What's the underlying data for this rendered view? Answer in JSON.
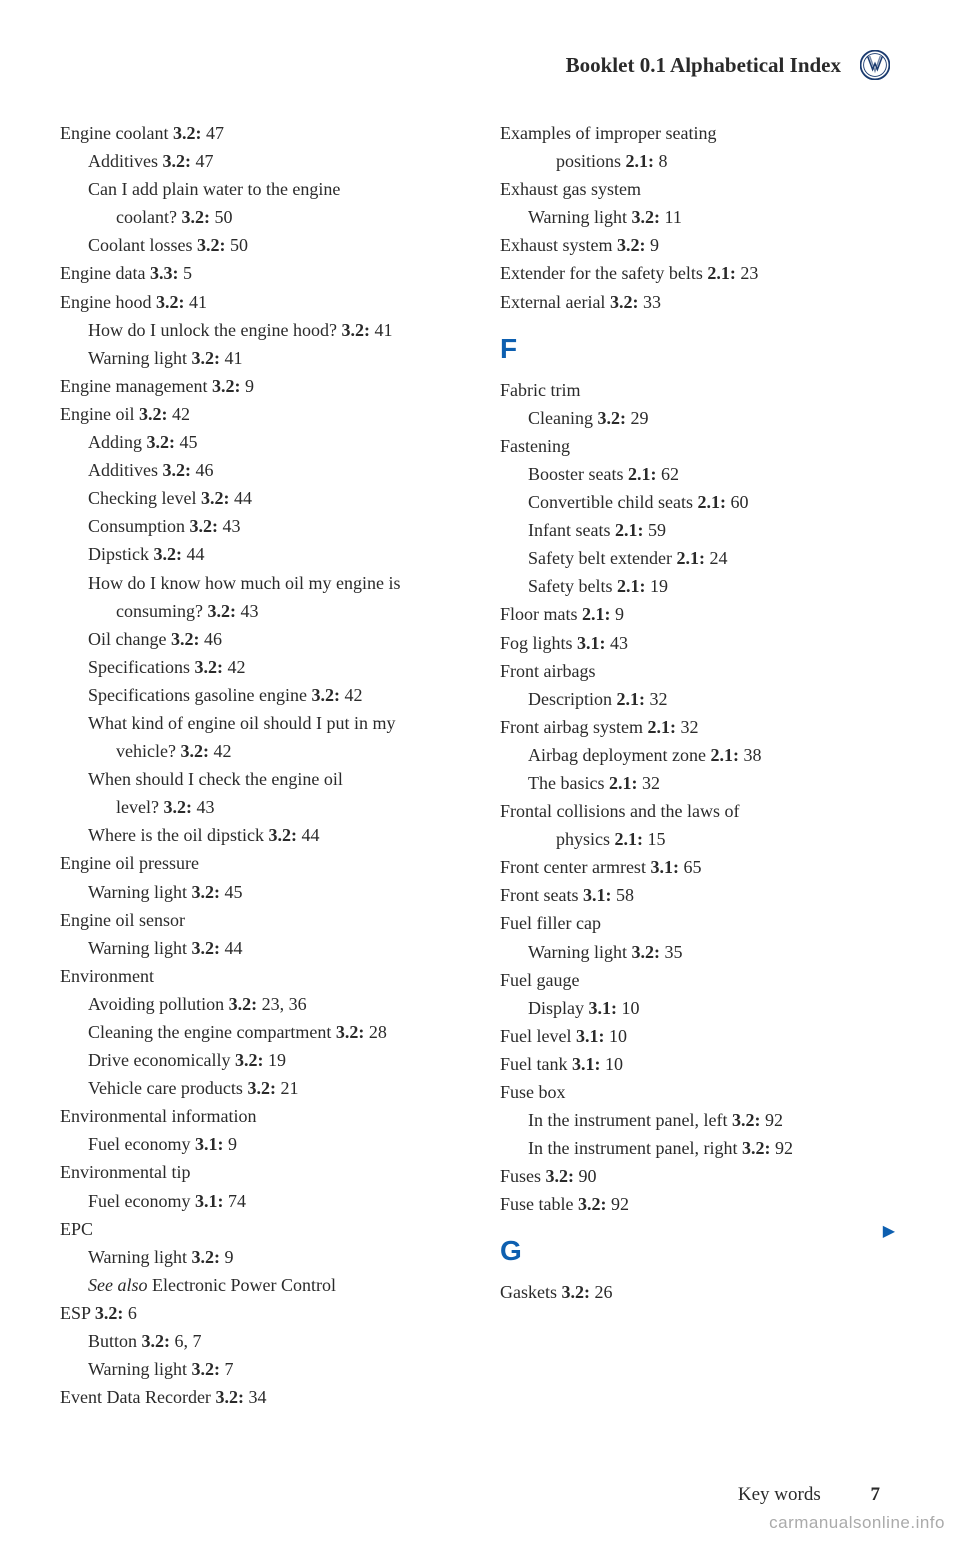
{
  "header": {
    "title": "Booklet 0.1  Alphabetical Index"
  },
  "left_col": [
    {
      "t": "main",
      "text": "Engine coolant  ",
      "ref": "3.2:",
      "pg": " 47"
    },
    {
      "t": "sub",
      "text": "Additives  ",
      "ref": "3.2:",
      "pg": " 47"
    },
    {
      "t": "sub",
      "text": "Can I add plain water to the engine"
    },
    {
      "t": "cont",
      "text": "coolant?  ",
      "ref": "3.2:",
      "pg": " 50"
    },
    {
      "t": "sub",
      "text": "Coolant losses  ",
      "ref": "3.2:",
      "pg": " 50"
    },
    {
      "t": "main",
      "text": "Engine data  ",
      "ref": "3.3:",
      "pg": " 5"
    },
    {
      "t": "main",
      "text": "Engine hood  ",
      "ref": "3.2:",
      "pg": " 41"
    },
    {
      "t": "sub",
      "text": "How do I unlock the engine hood?  ",
      "ref": "3.2:",
      "pg": " 41"
    },
    {
      "t": "sub",
      "text": "Warning light  ",
      "ref": "3.2:",
      "pg": " 41"
    },
    {
      "t": "main",
      "text": "Engine management  ",
      "ref": "3.2:",
      "pg": " 9"
    },
    {
      "t": "main",
      "text": "Engine oil  ",
      "ref": "3.2:",
      "pg": " 42"
    },
    {
      "t": "sub",
      "text": "Adding  ",
      "ref": "3.2:",
      "pg": " 45"
    },
    {
      "t": "sub",
      "text": "Additives  ",
      "ref": "3.2:",
      "pg": " 46"
    },
    {
      "t": "sub",
      "text": "Checking level  ",
      "ref": "3.2:",
      "pg": " 44"
    },
    {
      "t": "sub",
      "text": "Consumption  ",
      "ref": "3.2:",
      "pg": " 43"
    },
    {
      "t": "sub",
      "text": "Dipstick  ",
      "ref": "3.2:",
      "pg": " 44"
    },
    {
      "t": "sub",
      "text": "How do I know how much oil my engine is"
    },
    {
      "t": "cont",
      "text": "consuming?  ",
      "ref": "3.2:",
      "pg": " 43"
    },
    {
      "t": "sub",
      "text": "Oil change  ",
      "ref": "3.2:",
      "pg": " 46"
    },
    {
      "t": "sub",
      "text": "Specifications  ",
      "ref": "3.2:",
      "pg": " 42"
    },
    {
      "t": "sub",
      "text": "Specifications gasoline engine  ",
      "ref": "3.2:",
      "pg": " 42"
    },
    {
      "t": "sub",
      "text": "What kind of engine oil should I put in my"
    },
    {
      "t": "cont",
      "text": "vehicle?  ",
      "ref": "3.2:",
      "pg": " 42"
    },
    {
      "t": "sub",
      "text": "When should I check the engine oil"
    },
    {
      "t": "cont",
      "text": "level?  ",
      "ref": "3.2:",
      "pg": " 43"
    },
    {
      "t": "sub",
      "text": "Where is the oil dipstick  ",
      "ref": "3.2:",
      "pg": " 44"
    },
    {
      "t": "main",
      "text": "Engine oil pressure"
    },
    {
      "t": "sub",
      "text": "Warning light  ",
      "ref": "3.2:",
      "pg": " 45"
    },
    {
      "t": "main",
      "text": "Engine oil sensor"
    },
    {
      "t": "sub",
      "text": "Warning light  ",
      "ref": "3.2:",
      "pg": " 44"
    },
    {
      "t": "main",
      "text": "Environment"
    },
    {
      "t": "sub",
      "text": "Avoiding pollution  ",
      "ref": "3.2:",
      "pg": " 23, 36"
    },
    {
      "t": "sub",
      "text": "Cleaning the engine compartment  ",
      "ref": "3.2:",
      "pg": " 28"
    },
    {
      "t": "sub",
      "text": "Drive economically  ",
      "ref": "3.2:",
      "pg": " 19"
    },
    {
      "t": "sub",
      "text": "Vehicle care products  ",
      "ref": "3.2:",
      "pg": " 21"
    },
    {
      "t": "main",
      "text": "Environmental information"
    },
    {
      "t": "sub",
      "text": "Fuel economy  ",
      "ref": "3.1:",
      "pg": " 9"
    },
    {
      "t": "main",
      "text": "Environmental tip"
    },
    {
      "t": "sub",
      "text": "Fuel economy  ",
      "ref": "3.1:",
      "pg": " 74"
    },
    {
      "t": "main",
      "text": "EPC"
    },
    {
      "t": "sub",
      "text": "Warning light  ",
      "ref": "3.2:",
      "pg": " 9"
    },
    {
      "t": "sub",
      "italic": "See also ",
      "text": "Electronic Power Control"
    },
    {
      "t": "main",
      "text": "ESP  ",
      "ref": "3.2:",
      "pg": " 6"
    },
    {
      "t": "sub",
      "text": "Button  ",
      "ref": "3.2:",
      "pg": " 6, 7"
    },
    {
      "t": "sub",
      "text": "Warning light  ",
      "ref": "3.2:",
      "pg": " 7"
    },
    {
      "t": "main",
      "text": "Event Data Recorder  ",
      "ref": "3.2:",
      "pg": " 34"
    }
  ],
  "right_col": [
    {
      "t": "main",
      "text": "Examples of improper seating"
    },
    {
      "t": "cont",
      "text": "positions  ",
      "ref": "2.1:",
      "pg": " 8"
    },
    {
      "t": "main",
      "text": "Exhaust gas system"
    },
    {
      "t": "sub",
      "text": "Warning light  ",
      "ref": "3.2:",
      "pg": " 11"
    },
    {
      "t": "main",
      "text": "Exhaust system  ",
      "ref": "3.2:",
      "pg": " 9"
    },
    {
      "t": "main",
      "text": "Extender for the safety belts  ",
      "ref": "2.1:",
      "pg": " 23"
    },
    {
      "t": "main",
      "text": "External aerial  ",
      "ref": "3.2:",
      "pg": " 33"
    },
    {
      "t": "letter",
      "text": "F"
    },
    {
      "t": "main",
      "text": "Fabric trim"
    },
    {
      "t": "sub",
      "text": "Cleaning  ",
      "ref": "3.2:",
      "pg": " 29"
    },
    {
      "t": "main",
      "text": "Fastening"
    },
    {
      "t": "sub",
      "text": "Booster seats  ",
      "ref": "2.1:",
      "pg": " 62"
    },
    {
      "t": "sub",
      "text": "Convertible child seats  ",
      "ref": "2.1:",
      "pg": " 60"
    },
    {
      "t": "sub",
      "text": "Infant seats  ",
      "ref": "2.1:",
      "pg": " 59"
    },
    {
      "t": "sub",
      "text": "Safety belt extender  ",
      "ref": "2.1:",
      "pg": " 24"
    },
    {
      "t": "sub",
      "text": "Safety belts  ",
      "ref": "2.1:",
      "pg": " 19"
    },
    {
      "t": "main",
      "text": "Floor mats  ",
      "ref": "2.1:",
      "pg": " 9"
    },
    {
      "t": "main",
      "text": "Fog lights  ",
      "ref": "3.1:",
      "pg": " 43"
    },
    {
      "t": "main",
      "text": "Front airbags"
    },
    {
      "t": "sub",
      "text": "Description  ",
      "ref": "2.1:",
      "pg": " 32"
    },
    {
      "t": "main",
      "text": "Front airbag system  ",
      "ref": "2.1:",
      "pg": " 32"
    },
    {
      "t": "sub",
      "text": "Airbag deployment zone  ",
      "ref": "2.1:",
      "pg": " 38"
    },
    {
      "t": "sub",
      "text": "The basics  ",
      "ref": "2.1:",
      "pg": " 32"
    },
    {
      "t": "main",
      "text": "Frontal collisions and the laws of"
    },
    {
      "t": "cont",
      "text": "physics  ",
      "ref": "2.1:",
      "pg": " 15"
    },
    {
      "t": "main",
      "text": "Front center armrest  ",
      "ref": "3.1:",
      "pg": " 65"
    },
    {
      "t": "main",
      "text": "Front seats  ",
      "ref": "3.1:",
      "pg": " 58"
    },
    {
      "t": "main",
      "text": "Fuel filler cap"
    },
    {
      "t": "sub",
      "text": "Warning light  ",
      "ref": "3.2:",
      "pg": " 35"
    },
    {
      "t": "main",
      "text": "Fuel gauge"
    },
    {
      "t": "sub",
      "text": "Display  ",
      "ref": "3.1:",
      "pg": " 10"
    },
    {
      "t": "main",
      "text": "Fuel level  ",
      "ref": "3.1:",
      "pg": " 10"
    },
    {
      "t": "main",
      "text": "Fuel tank  ",
      "ref": "3.1:",
      "pg": " 10"
    },
    {
      "t": "main",
      "text": "Fuse box"
    },
    {
      "t": "sub",
      "text": "In the instrument panel, left  ",
      "ref": "3.2:",
      "pg": " 92"
    },
    {
      "t": "sub",
      "text": "In the instrument panel, right  ",
      "ref": "3.2:",
      "pg": " 92"
    },
    {
      "t": "main",
      "text": "Fuses  ",
      "ref": "3.2:",
      "pg": " 90"
    },
    {
      "t": "main",
      "text": "Fuse table  ",
      "ref": "3.2:",
      "pg": " 92"
    },
    {
      "t": "letter",
      "text": "G"
    },
    {
      "t": "main",
      "text": "Gaskets  ",
      "ref": "3.2:",
      "pg": " 26"
    }
  ],
  "footer": {
    "label": "Key words",
    "page": "7"
  },
  "watermark": "carmanualsonline.info"
}
